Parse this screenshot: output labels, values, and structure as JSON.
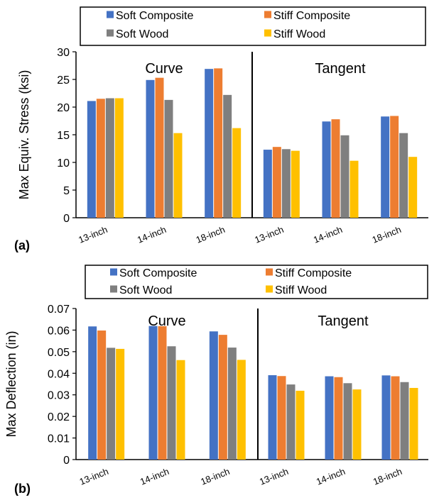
{
  "colors": {
    "soft_composite": "#4472C4",
    "stiff_composite": "#ED7D31",
    "soft_wood": "#7F7F7F",
    "stiff_wood": "#FFC000",
    "axis": "#000000",
    "text": "#000000"
  },
  "chart_data": [
    {
      "type": "bar",
      "panel_label": "(a)",
      "ylabel": "Max Equiv. Stress (ksi)",
      "xlabel": "",
      "ylim": [
        0,
        30
      ],
      "yticks": [
        0,
        5,
        10,
        15,
        20,
        25,
        30
      ],
      "ytick_labels": [
        "0",
        "5",
        "10",
        "15",
        "20",
        "25",
        "30"
      ],
      "groups": [
        "Curve",
        "Tangent"
      ],
      "categories": [
        "13-inch",
        "14-inch",
        "18-inch",
        "13-inch",
        "14-inch",
        "18-inch"
      ],
      "legend_position": "top",
      "grid": false,
      "series": [
        {
          "name": "Soft Composite",
          "values": [
            21.1,
            24.9,
            26.9,
            12.3,
            17.4,
            18.3
          ]
        },
        {
          "name": "Stiff Composite",
          "values": [
            21.5,
            25.3,
            27.0,
            12.8,
            17.8,
            18.4
          ]
        },
        {
          "name": "Soft Wood",
          "values": [
            21.6,
            21.3,
            22.2,
            12.4,
            14.9,
            15.3
          ]
        },
        {
          "name": "Stiff Wood",
          "values": [
            21.6,
            15.3,
            16.2,
            12.1,
            10.3,
            11.0
          ]
        }
      ]
    },
    {
      "type": "bar",
      "panel_label": "(b)",
      "ylabel": "Max Deflection (in)",
      "xlabel": "",
      "ylim": [
        0,
        0.07
      ],
      "yticks": [
        0,
        0.01,
        0.02,
        0.03,
        0.04,
        0.05,
        0.06,
        0.07
      ],
      "ytick_labels": [
        "0",
        "0.01",
        "0.02",
        "0.03",
        "0.04",
        "0.05",
        "0.06",
        "0.07"
      ],
      "groups": [
        "Curve",
        "Tangent"
      ],
      "categories": [
        "13-inch",
        "14-inch",
        "18-inch",
        "13-inch",
        "14-inch",
        "18-inch"
      ],
      "legend_position": "top",
      "grid": false,
      "series": [
        {
          "name": "Soft Composite",
          "values": [
            0.0617,
            0.0619,
            0.0594,
            0.0391,
            0.0386,
            0.039
          ]
        },
        {
          "name": "Stiff Composite",
          "values": [
            0.0598,
            0.0618,
            0.0578,
            0.0387,
            0.0382,
            0.0386
          ]
        },
        {
          "name": "Soft Wood",
          "values": [
            0.0518,
            0.0525,
            0.0519,
            0.0348,
            0.0354,
            0.0359
          ]
        },
        {
          "name": "Stiff Wood",
          "values": [
            0.0513,
            0.0461,
            0.0462,
            0.0319,
            0.0325,
            0.0332
          ]
        }
      ]
    }
  ]
}
